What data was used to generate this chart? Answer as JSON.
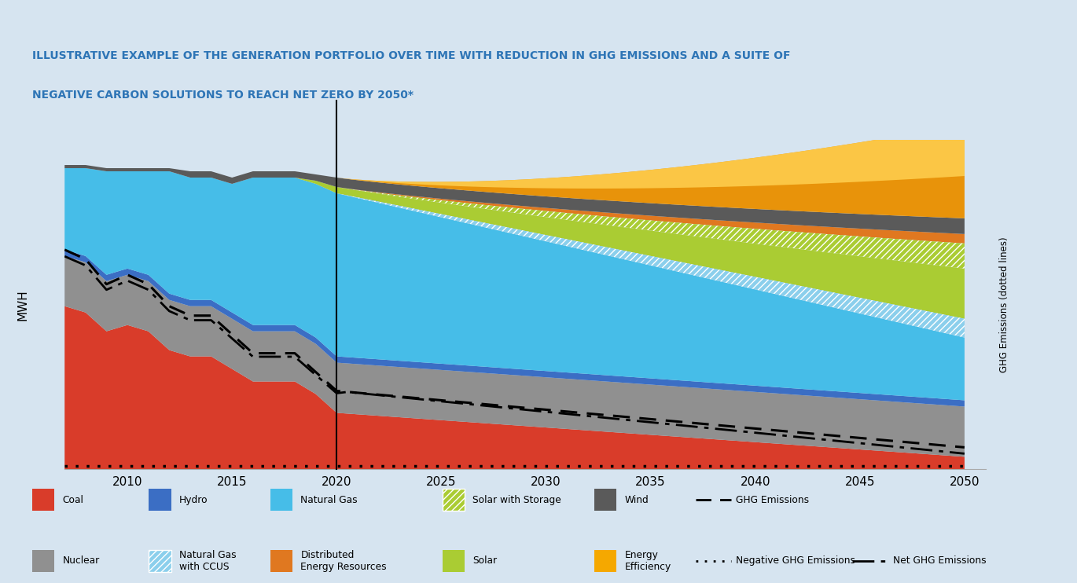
{
  "title_line1": "ILLUSTRATIVE EXAMPLE OF THE GENERATION PORTFOLIO OVER TIME WITH REDUCTION IN GHG EMISSIONS AND A SUITE OF",
  "title_line2": "NEGATIVE CARBON SOLUTIONS TO REACH NET ZERO BY 2050*",
  "title_color": "#2E75B6",
  "bg_color": "#D6E4F0",
  "ylabel_left": "MWH",
  "ylabel_right": "GHG Emissions (dotted lines)",
  "x_ticks": [
    2010,
    2015,
    2020,
    2025,
    2030,
    2035,
    2040,
    2045,
    2050
  ],
  "colors": {
    "coal": "#D93C2A",
    "nuclear": "#909090",
    "hydro": "#3B6EC4",
    "natural_gas": "#46BDE8",
    "ng_ccus_fill": "#8BCFEC",
    "der": "#E07820",
    "solar": "#AACC33",
    "solar_storage_fill": "#AACC33",
    "wind": "#5A5A5A",
    "energy_eff": "#F5A800",
    "top_line": "#2E75B6"
  }
}
